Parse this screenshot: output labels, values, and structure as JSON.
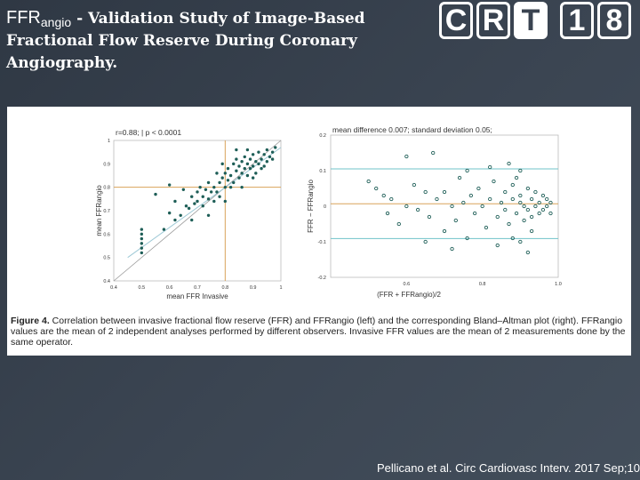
{
  "slide": {
    "title_prefix": "FFR",
    "title_sub": "angio",
    "title_rest": " - Validation Study of Image-Based Fractional Flow Reserve During Coronary Angiography.",
    "logo_letters": [
      "C",
      "R",
      "T",
      "1",
      "8"
    ],
    "citation": "Pellicano et al. Circ Cardiovasc Interv. 2017 Sep;10"
  },
  "caption": {
    "fig_label": "Figure 4.",
    "text": " Correlation between invasive fractional flow reserve (FFR) and FFRangio (left) and the corresponding Bland–Altman plot (right). FFRangio values are the mean of 2 independent analyses performed by different observers. Invasive FFR values are the mean of 2 measurements done by the same operator."
  },
  "colors": {
    "point": "#1e5e57",
    "ref_line": "#d9a35a",
    "limit_line": "#6fc3c9",
    "fit_line": "#9ec9d6"
  },
  "chart_data": [
    {
      "type": "scatter",
      "annotation": "r=0.88;  |  p < 0.0001",
      "xlabel": "mean FFR Invasive",
      "ylabel": "mean FFRangio",
      "xlim": [
        0.4,
        1.0
      ],
      "ylim": [
        0.4,
        1.0
      ],
      "xticks": [
        "0.4",
        "0.5",
        "0.6",
        "0.7",
        "0.8",
        "0.9",
        "1"
      ],
      "yticks": [
        "0.4",
        "0.5",
        "0.6",
        "0.7",
        "0.8",
        "0.9",
        "1"
      ],
      "reference_lines": {
        "x": 0.8,
        "y": 0.8
      },
      "points": [
        [
          0.5,
          0.52
        ],
        [
          0.5,
          0.54
        ],
        [
          0.5,
          0.56
        ],
        [
          0.5,
          0.58
        ],
        [
          0.5,
          0.6
        ],
        [
          0.5,
          0.62
        ],
        [
          0.58,
          0.62
        ],
        [
          0.6,
          0.69
        ],
        [
          0.62,
          0.66
        ],
        [
          0.64,
          0.68
        ],
        [
          0.66,
          0.72
        ],
        [
          0.67,
          0.71
        ],
        [
          0.68,
          0.76
        ],
        [
          0.69,
          0.73
        ],
        [
          0.7,
          0.78
        ],
        [
          0.7,
          0.74
        ],
        [
          0.71,
          0.8
        ],
        [
          0.72,
          0.76
        ],
        [
          0.72,
          0.72
        ],
        [
          0.73,
          0.79
        ],
        [
          0.74,
          0.75
        ],
        [
          0.74,
          0.82
        ],
        [
          0.75,
          0.78
        ],
        [
          0.76,
          0.74
        ],
        [
          0.76,
          0.8
        ],
        [
          0.77,
          0.86
        ],
        [
          0.77,
          0.78
        ],
        [
          0.78,
          0.82
        ],
        [
          0.78,
          0.76
        ],
        [
          0.79,
          0.84
        ],
        [
          0.8,
          0.8
        ],
        [
          0.8,
          0.86
        ],
        [
          0.81,
          0.83
        ],
        [
          0.81,
          0.88
        ],
        [
          0.82,
          0.8
        ],
        [
          0.82,
          0.85
        ],
        [
          0.83,
          0.9
        ],
        [
          0.83,
          0.82
        ],
        [
          0.84,
          0.87
        ],
        [
          0.84,
          0.92
        ],
        [
          0.85,
          0.84
        ],
        [
          0.85,
          0.89
        ],
        [
          0.86,
          0.91
        ],
        [
          0.86,
          0.86
        ],
        [
          0.87,
          0.88
        ],
        [
          0.87,
          0.93
        ],
        [
          0.88,
          0.9
        ],
        [
          0.88,
          0.85
        ],
        [
          0.89,
          0.92
        ],
        [
          0.89,
          0.88
        ],
        [
          0.9,
          0.94
        ],
        [
          0.9,
          0.89
        ],
        [
          0.91,
          0.91
        ],
        [
          0.91,
          0.86
        ],
        [
          0.92,
          0.95
        ],
        [
          0.92,
          0.9
        ],
        [
          0.93,
          0.92
        ],
        [
          0.93,
          0.88
        ],
        [
          0.94,
          0.94
        ],
        [
          0.95,
          0.91
        ],
        [
          0.95,
          0.96
        ],
        [
          0.96,
          0.93
        ],
        [
          0.97,
          0.95
        ],
        [
          0.98,
          0.97
        ],
        [
          0.65,
          0.79
        ],
        [
          0.6,
          0.81
        ],
        [
          0.55,
          0.77
        ],
        [
          0.62,
          0.74
        ],
        [
          0.68,
          0.66
        ],
        [
          0.74,
          0.68
        ],
        [
          0.8,
          0.74
        ],
        [
          0.86,
          0.8
        ],
        [
          0.9,
          0.84
        ],
        [
          0.79,
          0.9
        ],
        [
          0.84,
          0.96
        ],
        [
          0.88,
          0.96
        ],
        [
          0.94,
          0.89
        ],
        [
          0.97,
          0.92
        ]
      ]
    },
    {
      "type": "scatter",
      "annotation": "mean difference 0.007; standard deviation 0.05;",
      "xlabel": "(FFR + FFRangio)/2",
      "ylabel": "FFR − FFRangio",
      "xlim": [
        0.4,
        1.0
      ],
      "ylim": [
        -0.2,
        0.2
      ],
      "xticks": [
        "0.6",
        "0.8",
        "1.0"
      ],
      "yticks": [
        "0.2",
        "0.1",
        "0",
        "-0.1",
        "-0.2"
      ],
      "mean_line": 0.007,
      "limit_lines": [
        0.105,
        -0.091
      ],
      "points": [
        [
          0.5,
          0.07
        ],
        [
          0.52,
          0.05
        ],
        [
          0.54,
          0.03
        ],
        [
          0.55,
          -0.02
        ],
        [
          0.56,
          0.02
        ],
        [
          0.58,
          -0.05
        ],
        [
          0.6,
          0.14
        ],
        [
          0.6,
          0.0
        ],
        [
          0.62,
          0.06
        ],
        [
          0.63,
          -0.01
        ],
        [
          0.65,
          0.04
        ],
        [
          0.66,
          -0.03
        ],
        [
          0.67,
          0.15
        ],
        [
          0.68,
          0.02
        ],
        [
          0.7,
          -0.07
        ],
        [
          0.7,
          0.04
        ],
        [
          0.72,
          0.0
        ],
        [
          0.73,
          -0.04
        ],
        [
          0.74,
          0.08
        ],
        [
          0.75,
          0.01
        ],
        [
          0.76,
          -0.09
        ],
        [
          0.77,
          0.03
        ],
        [
          0.78,
          -0.02
        ],
        [
          0.79,
          0.05
        ],
        [
          0.8,
          0.0
        ],
        [
          0.81,
          -0.06
        ],
        [
          0.82,
          0.02
        ],
        [
          0.83,
          0.07
        ],
        [
          0.84,
          -0.03
        ],
        [
          0.85,
          0.01
        ],
        [
          0.86,
          0.04
        ],
        [
          0.86,
          -0.01
        ],
        [
          0.87,
          -0.05
        ],
        [
          0.88,
          0.02
        ],
        [
          0.88,
          0.06
        ],
        [
          0.89,
          -0.02
        ],
        [
          0.9,
          0.01
        ],
        [
          0.9,
          0.03
        ],
        [
          0.91,
          -0.04
        ],
        [
          0.91,
          0.0
        ],
        [
          0.92,
          0.05
        ],
        [
          0.92,
          -0.01
        ],
        [
          0.93,
          0.02
        ],
        [
          0.93,
          -0.03
        ],
        [
          0.94,
          0.0
        ],
        [
          0.94,
          0.04
        ],
        [
          0.95,
          -0.02
        ],
        [
          0.95,
          0.01
        ],
        [
          0.96,
          0.03
        ],
        [
          0.96,
          -0.01
        ],
        [
          0.97,
          0.0
        ],
        [
          0.97,
          0.02
        ],
        [
          0.98,
          -0.02
        ],
        [
          0.98,
          0.01
        ],
        [
          0.84,
          -0.11
        ],
        [
          0.88,
          -0.09
        ],
        [
          0.9,
          -0.1
        ],
        [
          0.92,
          -0.13
        ],
        [
          0.87,
          0.12
        ],
        [
          0.9,
          0.1
        ],
        [
          0.82,
          0.11
        ],
        [
          0.76,
          0.1
        ],
        [
          0.72,
          -0.12
        ],
        [
          0.65,
          -0.1
        ],
        [
          0.93,
          -0.07
        ],
        [
          0.89,
          0.08
        ]
      ]
    }
  ]
}
